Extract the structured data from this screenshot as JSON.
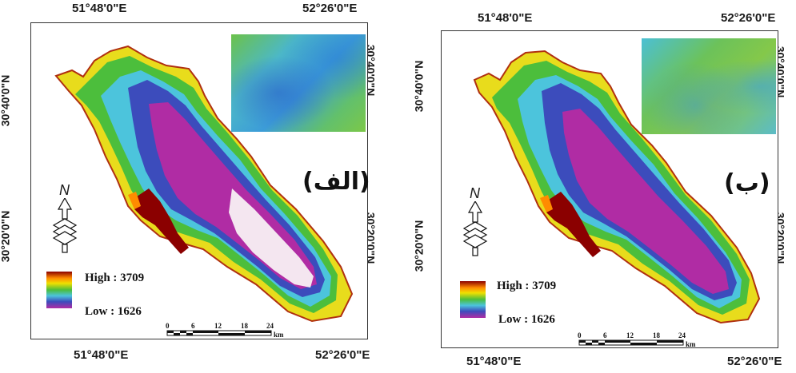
{
  "panels": [
    {
      "letter": "(الف)",
      "coords": {
        "top_left": "51°48'0\"E",
        "top_right": "52°26'0\"E",
        "bottom_left": "51°48'0\"E",
        "bottom_right": "52°26'0\"E",
        "left_upper": "30°40'0\"N",
        "left_lower": "30°20'0\"N",
        "right_upper": "30°40'0\"N",
        "right_lower": "30°20'0\"N"
      },
      "legend": {
        "high": "High : 3709",
        "low": "Low : 1626"
      },
      "north": "N",
      "scale": {
        "ticks": [
          "0",
          "6",
          "12",
          "18",
          "24"
        ],
        "unit": "km"
      }
    },
    {
      "letter": "(ب)",
      "coords": {
        "top_left": "51°48'0\"E",
        "top_right": "52°26'0\"E",
        "bottom_left": "51°48'0\"E",
        "bottom_right": "52°26'0\"E",
        "left_upper": "30°40'0\"N",
        "left_lower": "30°20'0\"N",
        "right_upper": "30°40'0\"N",
        "right_lower": "30°20'0\"N"
      },
      "legend": {
        "high": "High : 3709",
        "low": "Low : 1626"
      },
      "north": "N",
      "scale": {
        "ticks": [
          "0",
          "6",
          "12",
          "18",
          "24"
        ],
        "unit": "km"
      }
    }
  ],
  "colors": {
    "high": "#8b0000",
    "orange": "#ff8c00",
    "yellow": "#f0e000",
    "green": "#4cbe3c",
    "cyan": "#4cc4dc",
    "blue": "#3c4cbc",
    "purple": "#b02ca4",
    "low_white": "#f4e6f0",
    "boundary": "#b03010"
  }
}
